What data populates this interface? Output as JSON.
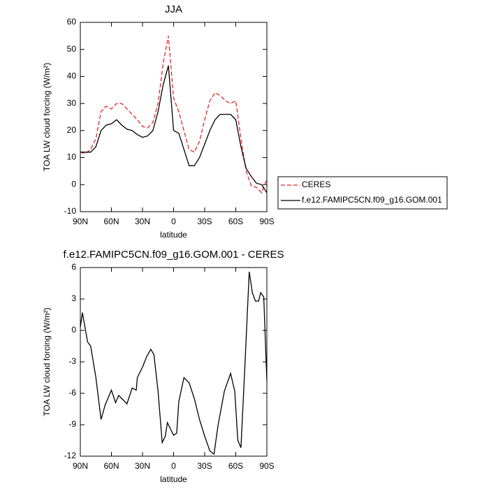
{
  "chart_data": [
    {
      "type": "line",
      "title": "JJA",
      "xlabel": "latitude",
      "ylabel": "TOA LW cloud forcing (W/m²)",
      "x": [
        90,
        85,
        80,
        75,
        70,
        65,
        60,
        55,
        50,
        45,
        40,
        35,
        30,
        25,
        20,
        15,
        10,
        5,
        0,
        -5,
        -10,
        -15,
        -20,
        -25,
        -30,
        -35,
        -40,
        -45,
        -50,
        -55,
        -60,
        -65,
        -70,
        -75,
        -80,
        -85,
        -90
      ],
      "series": [
        {
          "name": "CERES",
          "color": "#e8232a",
          "dashed": true,
          "values": [
            12,
            11.5,
            13,
            17,
            27,
            29,
            28,
            30,
            30,
            28,
            26,
            24,
            21.5,
            21,
            23,
            30,
            45,
            55,
            32,
            27,
            20,
            13,
            12,
            16,
            24,
            31,
            34,
            33,
            31,
            30,
            31,
            17,
            5,
            -0.5,
            -1,
            -3,
            2
          ]
        },
        {
          "name": "f.e12.FAMIPC5CN.f09_g16.GOM.001",
          "color": "#000000",
          "dashed": false,
          "values": [
            12,
            12,
            12,
            14,
            20,
            22,
            22.5,
            24,
            22,
            20.5,
            20,
            18.5,
            17.5,
            18,
            20,
            27,
            37,
            44,
            20,
            19,
            13,
            7,
            7,
            10,
            15,
            20,
            24,
            26,
            26,
            26,
            24,
            14,
            6,
            3,
            0.5,
            0,
            -3
          ]
        }
      ],
      "xlim": [
        90,
        -90
      ],
      "xticks": [
        {
          "value": 90,
          "label": "90N"
        },
        {
          "value": 60,
          "label": "60N"
        },
        {
          "value": 30,
          "label": "30N"
        },
        0,
        {
          "value": -30,
          "label": "30S"
        },
        {
          "value": -60,
          "label": "60S"
        },
        {
          "value": -90,
          "label": "90S"
        }
      ],
      "ylim": [
        -10,
        60
      ],
      "yticks": [
        60,
        50,
        40,
        30,
        20,
        10,
        0,
        -10
      ],
      "legend": "right"
    },
    {
      "type": "line",
      "title": "f.e12.FAMIPC5CN.f09_g16.GOM.001 - CERES",
      "xlabel": "latitude",
      "ylabel": "TOA LW cloud forcing (W/m²)",
      "x": [
        90,
        88,
        83,
        80,
        75,
        70,
        66,
        60,
        56,
        53,
        45,
        40,
        36,
        35,
        30,
        26,
        22,
        19,
        15,
        11,
        8,
        6,
        0,
        -3,
        -5,
        -10,
        -15,
        -20,
        -25,
        -30,
        -35,
        -39,
        -43,
        -49,
        -55,
        -59,
        -62,
        -65,
        -69,
        -73,
        -76,
        -79,
        -82,
        -84,
        -87,
        -90
      ],
      "values": [
        0.3,
        1.7,
        -1.1,
        -1.5,
        -4.5,
        -8.5,
        -7.1,
        -5.7,
        -6.9,
        -6.2,
        -7,
        -5.5,
        -5.7,
        -4.5,
        -3.5,
        -2.5,
        -1.8,
        -2.3,
        -5.8,
        -10.7,
        -10.1,
        -8.8,
        -10,
        -9.8,
        -6.8,
        -4.5,
        -5,
        -6.5,
        -8.5,
        -10.1,
        -11.5,
        -11.8,
        -9,
        -5.8,
        -4.1,
        -5.8,
        -10.5,
        -11.2,
        -3,
        5.6,
        3.6,
        2.8,
        2.8,
        3.6,
        3.2,
        -4.8
      ],
      "color": "#000000",
      "xlim": [
        90,
        -90
      ],
      "xticks": [
        {
          "value": 90,
          "label": "90N"
        },
        {
          "value": 60,
          "label": "60N"
        },
        {
          "value": 30,
          "label": "30N"
        },
        0,
        {
          "value": -30,
          "label": "30S"
        },
        {
          "value": -60,
          "label": "60S"
        },
        {
          "value": -90,
          "label": "90S"
        }
      ],
      "ylim": [
        -12,
        6
      ],
      "yticks": [
        6,
        3,
        0,
        -3,
        -6,
        -9,
        -12
      ]
    }
  ]
}
